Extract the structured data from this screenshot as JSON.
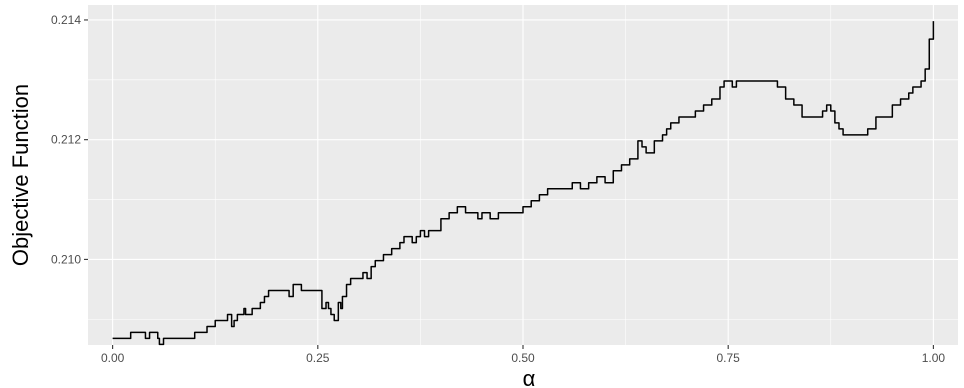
{
  "colors": {
    "panel_background": "#ebebeb",
    "grid": "#ffffff",
    "line": "#000000",
    "tick_text": "#4d4d4d"
  },
  "chart_data": {
    "type": "line",
    "title": "",
    "xlabel": "α",
    "ylabel": "Objective Function",
    "xlim": [
      -0.03,
      1.03
    ],
    "ylim": [
      0.20857,
      0.21425
    ],
    "x_ticks": [
      0.0,
      0.25,
      0.5,
      0.75,
      1.0
    ],
    "x_tick_labels": [
      "0.00",
      "0.25",
      "0.50",
      "0.75",
      "1.00"
    ],
    "y_ticks": [
      0.21,
      0.212,
      0.214
    ],
    "y_tick_labels": [
      "0.210",
      "0.212",
      "0.214"
    ],
    "grid": true,
    "legend": "none",
    "series": [
      {
        "x": [
          0.0,
          0.02,
          0.022,
          0.035,
          0.04,
          0.045,
          0.05,
          0.055,
          0.057,
          0.06,
          0.062,
          0.065,
          0.072,
          0.08,
          0.09,
          0.1,
          0.11,
          0.115,
          0.12,
          0.125,
          0.13,
          0.14,
          0.145,
          0.148,
          0.152,
          0.155,
          0.16,
          0.162,
          0.165,
          0.17,
          0.175,
          0.18,
          0.185,
          0.19,
          0.195,
          0.2,
          0.21,
          0.215,
          0.22,
          0.23,
          0.24,
          0.25,
          0.255,
          0.26,
          0.263,
          0.266,
          0.27,
          0.275,
          0.278,
          0.28,
          0.285,
          0.29,
          0.3,
          0.305,
          0.31,
          0.315,
          0.32,
          0.33,
          0.34,
          0.35,
          0.355,
          0.36,
          0.365,
          0.37,
          0.375,
          0.38,
          0.385,
          0.39,
          0.4,
          0.41,
          0.42,
          0.425,
          0.43,
          0.44,
          0.445,
          0.45,
          0.46,
          0.47,
          0.475,
          0.48,
          0.5,
          0.51,
          0.52,
          0.53,
          0.54,
          0.55,
          0.56,
          0.565,
          0.57,
          0.58,
          0.59,
          0.6,
          0.61,
          0.62,
          0.625,
          0.63,
          0.64,
          0.645,
          0.65,
          0.655,
          0.66,
          0.67,
          0.675,
          0.68,
          0.69,
          0.7,
          0.71,
          0.72,
          0.73,
          0.74,
          0.745,
          0.75,
          0.755,
          0.76,
          0.77,
          0.78,
          0.79,
          0.8,
          0.81,
          0.82,
          0.83,
          0.84,
          0.85,
          0.86,
          0.865,
          0.87,
          0.875,
          0.88,
          0.885,
          0.89,
          0.9,
          0.91,
          0.92,
          0.93,
          0.94,
          0.95,
          0.96,
          0.97,
          0.975,
          0.98,
          0.985,
          0.99,
          0.995,
          1.0
        ],
        "values": [
          0.20868,
          0.20868,
          0.20878,
          0.20878,
          0.20868,
          0.20878,
          0.20878,
          0.20868,
          0.20858,
          0.20858,
          0.20868,
          0.20868,
          0.20868,
          0.20868,
          0.20868,
          0.20878,
          0.20878,
          0.20888,
          0.20888,
          0.20898,
          0.20898,
          0.20908,
          0.20888,
          0.20898,
          0.20908,
          0.20908,
          0.20918,
          0.20908,
          0.20908,
          0.20918,
          0.20918,
          0.20928,
          0.20938,
          0.20948,
          0.20948,
          0.20948,
          0.20948,
          0.20938,
          0.20958,
          0.20948,
          0.20948,
          0.20948,
          0.20918,
          0.20928,
          0.20918,
          0.20908,
          0.20898,
          0.20928,
          0.20918,
          0.20938,
          0.20958,
          0.20968,
          0.20968,
          0.20978,
          0.20968,
          0.20988,
          0.20998,
          0.21008,
          0.21018,
          0.21028,
          0.21038,
          0.21038,
          0.21028,
          0.21038,
          0.21048,
          0.21038,
          0.21048,
          0.21048,
          0.21068,
          0.21078,
          0.21088,
          0.21088,
          0.21078,
          0.21078,
          0.21068,
          0.21078,
          0.21068,
          0.21078,
          0.21078,
          0.21078,
          0.21088,
          0.21098,
          0.21108,
          0.21118,
          0.21118,
          0.21118,
          0.21128,
          0.21128,
          0.21118,
          0.21128,
          0.21138,
          0.21128,
          0.21148,
          0.21158,
          0.21158,
          0.21168,
          0.21198,
          0.21188,
          0.21178,
          0.21178,
          0.21198,
          0.21208,
          0.21218,
          0.21228,
          0.21238,
          0.21238,
          0.21248,
          0.21258,
          0.21268,
          0.21288,
          0.21298,
          0.21298,
          0.21288,
          0.21298,
          0.21298,
          0.21298,
          0.21298,
          0.21298,
          0.21288,
          0.21268,
          0.21258,
          0.21238,
          0.21238,
          0.21238,
          0.21248,
          0.21258,
          0.21248,
          0.21228,
          0.21218,
          0.21208,
          0.21208,
          0.21208,
          0.21218,
          0.21238,
          0.21238,
          0.21258,
          0.21268,
          0.21278,
          0.21288,
          0.21288,
          0.21298,
          0.21318,
          0.21368,
          0.21398
        ]
      }
    ]
  }
}
